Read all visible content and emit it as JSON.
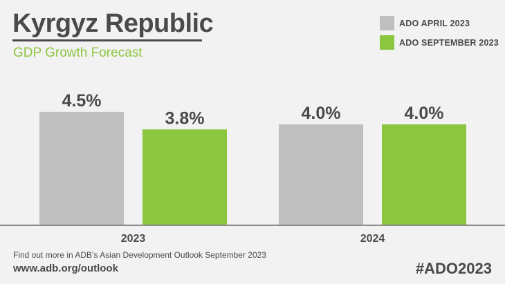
{
  "header": {
    "title": "Kyrgyz Republic",
    "subtitle": "GDP Growth Forecast"
  },
  "chart_data": {
    "type": "bar",
    "title": "Kyrgyz Republic",
    "subtitle": "GDP Growth Forecast",
    "categories": [
      "2023",
      "2024"
    ],
    "series": [
      {
        "name": "ADO APRIL 2023",
        "values": [
          4.5,
          4.0
        ],
        "labels": [
          "4.5%",
          "4.0%"
        ],
        "color": "#bfbfbf"
      },
      {
        "name": "ADO SEPTEMBER 2023",
        "values": [
          3.8,
          4.0
        ],
        "labels": [
          "3.8%",
          "4.0%"
        ],
        "color": "#8cc63f"
      }
    ],
    "xlabel": "",
    "ylabel": "",
    "ylim": [
      0,
      5.6
    ],
    "grid": false,
    "legend": "top-right"
  },
  "footer": {
    "note": "Find out more in ADB’s Asian Development Outlook September 2023",
    "url": "www.adb.org/outlook",
    "hashtag": "#ADO2023"
  },
  "colors": {
    "gray_bar": "#bfbfbf",
    "green_bar": "#8cc63f",
    "text": "#4a4a4a",
    "baseline": "#8c8c8c"
  }
}
